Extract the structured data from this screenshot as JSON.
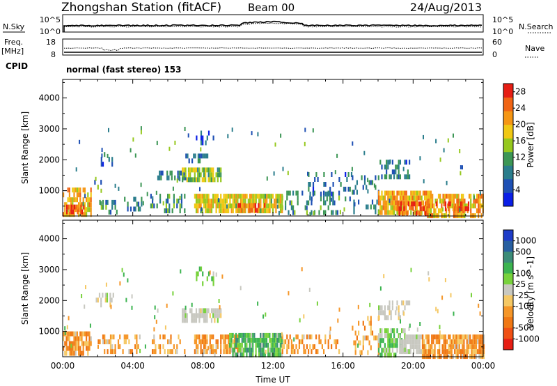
{
  "header": {
    "station": "Zhongshan Station (fitACF)",
    "beam": "Beam 00",
    "date": "24/Aug/2013"
  },
  "strips": {
    "nsky_label": "N.Sky",
    "nsearch_label": "N.Search",
    "noise_top_tick": "10^5",
    "noise_bottom_tick": "10^0",
    "freq_label_line1": "Freq.",
    "freq_label_line2": "[MHz]",
    "freq_top_tick": "18",
    "freq_bottom_tick": "8",
    "nave_label": "Nave",
    "nave_top_tick": "60",
    "nave_bottom_tick": "0",
    "cpid_label": "CPID",
    "cpid_value": "normal (fast stereo) 153"
  },
  "chart_data": [
    {
      "type": "heatmap",
      "panel": "power",
      "ylabel": "Slant Range [km]",
      "xlabel": "",
      "x_ticks": [
        "00:00",
        "04:00",
        "08:00",
        "12:00",
        "16:00",
        "20:00",
        "00:00"
      ],
      "y_ticks": [
        1000,
        2000,
        3000,
        4000
      ],
      "xlim_hours": [
        0,
        24
      ],
      "ylim": [
        180,
        4600
      ],
      "colorbar": {
        "label": "Power [dB]",
        "ticks": [
          4,
          8,
          12,
          16,
          20,
          24,
          28
        ],
        "range": [
          0,
          30
        ],
        "colors": [
          "#0a1ee6",
          "#1e50b4",
          "#2a7d8c",
          "#3c9655",
          "#96c81e",
          "#f0c814",
          "#f59614",
          "#f06414",
          "#e61e14"
        ]
      },
      "patches": [
        {
          "x0": 0.0,
          "x1": 1.6,
          "y0": 250,
          "y1": 1100,
          "level": 20,
          "density": 0.65
        },
        {
          "x0": 0.2,
          "x1": 1.2,
          "y0": 300,
          "y1": 550,
          "level": 27,
          "density": 0.75
        },
        {
          "x0": 2.0,
          "x1": 3.2,
          "y0": 300,
          "y1": 700,
          "level": 10,
          "density": 0.35
        },
        {
          "x0": 1.8,
          "x1": 2.4,
          "y0": 1150,
          "y1": 1350,
          "level": 9,
          "density": 0.4
        },
        {
          "x0": 2.0,
          "x1": 2.9,
          "y0": 1800,
          "y1": 2250,
          "level": 7,
          "density": 0.35
        },
        {
          "x0": 3.5,
          "x1": 4.6,
          "y0": 350,
          "y1": 800,
          "level": 9,
          "density": 0.25
        },
        {
          "x0": 5.0,
          "x1": 7.0,
          "y0": 300,
          "y1": 900,
          "level": 10,
          "density": 0.35
        },
        {
          "x0": 5.4,
          "x1": 7.0,
          "y0": 1350,
          "y1": 1650,
          "level": 8,
          "density": 0.55
        },
        {
          "x0": 6.8,
          "x1": 9.0,
          "y0": 1400,
          "y1": 1750,
          "level": 14,
          "density": 0.8
        },
        {
          "x0": 7.0,
          "x1": 8.3,
          "y0": 1900,
          "y1": 2200,
          "level": 7,
          "density": 0.35
        },
        {
          "x0": 7.6,
          "x1": 8.6,
          "y0": 2500,
          "y1": 3100,
          "level": 7,
          "density": 0.15
        },
        {
          "x0": 7.5,
          "x1": 12.5,
          "y0": 300,
          "y1": 900,
          "level": 18,
          "density": 0.85
        },
        {
          "x0": 10.0,
          "x1": 11.5,
          "y0": 350,
          "y1": 600,
          "level": 25,
          "density": 0.5
        },
        {
          "x0": 12.5,
          "x1": 15.8,
          "y0": 300,
          "y1": 1000,
          "level": 10,
          "density": 0.3
        },
        {
          "x0": 14.0,
          "x1": 16.5,
          "y0": 700,
          "y1": 1600,
          "level": 7,
          "density": 0.15
        },
        {
          "x0": 16.5,
          "x1": 18.0,
          "y0": 300,
          "y1": 1500,
          "level": 9,
          "density": 0.25
        },
        {
          "x0": 18.0,
          "x1": 21.0,
          "y0": 250,
          "y1": 1000,
          "level": 20,
          "density": 0.85
        },
        {
          "x0": 19.0,
          "x1": 20.8,
          "y0": 280,
          "y1": 650,
          "level": 27,
          "density": 0.55
        },
        {
          "x0": 18.0,
          "x1": 19.8,
          "y0": 1400,
          "y1": 2000,
          "level": 8,
          "density": 0.5
        },
        {
          "x0": 20.8,
          "x1": 24.0,
          "y0": 250,
          "y1": 900,
          "level": 20,
          "density": 0.8
        },
        {
          "x0": 21.2,
          "x1": 23.2,
          "y0": 350,
          "y1": 650,
          "level": 27,
          "density": 0.45
        }
      ]
    },
    {
      "type": "heatmap",
      "panel": "velocity",
      "ylabel": "Slant Range [km]",
      "xlabel": "Time UT",
      "x_ticks": [
        "00:00",
        "04:00",
        "08:00",
        "12:00",
        "16:00",
        "20:00",
        "00:00"
      ],
      "y_ticks": [
        1000,
        2000,
        3000,
        4000
      ],
      "xlim_hours": [
        0,
        24
      ],
      "ylim": [
        180,
        4600
      ],
      "colorbar": {
        "label": "Velocity [m s^-1]",
        "ticks": [
          "1000",
          "500",
          "100",
          "25",
          "-25",
          "-100",
          "-500",
          "-1000"
        ],
        "colors": [
          "#1e3cc8",
          "#285fa0",
          "#3c8c78",
          "#3cb450",
          "#78d23c",
          "#c8c8c0",
          "#f5c864",
          "#f59628",
          "#f07814",
          "#f05014",
          "#e61e14"
        ]
      },
      "patches": [
        {
          "x0": 0.0,
          "x1": 1.6,
          "y0": 250,
          "y1": 1000,
          "level": -200,
          "density": 0.75
        },
        {
          "x0": 2.0,
          "x1": 4.5,
          "y0": 300,
          "y1": 900,
          "level": -150,
          "density": 0.35
        },
        {
          "x0": 1.8,
          "x1": 2.9,
          "y0": 1800,
          "y1": 2250,
          "level": 0,
          "density": 0.3
        },
        {
          "x0": 5.0,
          "x1": 7.0,
          "y0": 300,
          "y1": 900,
          "level": -150,
          "density": 0.35
        },
        {
          "x0": 6.8,
          "x1": 9.0,
          "y0": 1400,
          "y1": 1750,
          "level": 0,
          "density": 0.8
        },
        {
          "x0": 7.6,
          "x1": 8.6,
          "y0": 2500,
          "y1": 3100,
          "level": 60,
          "density": 0.2
        },
        {
          "x0": 7.5,
          "x1": 10.0,
          "y0": 300,
          "y1": 900,
          "level": -200,
          "density": 0.7
        },
        {
          "x0": 9.5,
          "x1": 12.5,
          "y0": 300,
          "y1": 950,
          "level": 150,
          "density": 0.8
        },
        {
          "x0": 12.5,
          "x1": 15.8,
          "y0": 300,
          "y1": 900,
          "level": -200,
          "density": 0.4
        },
        {
          "x0": 16.5,
          "x1": 18.0,
          "y0": 300,
          "y1": 1500,
          "level": -150,
          "density": 0.25
        },
        {
          "x0": 18.0,
          "x1": 19.5,
          "y0": 280,
          "y1": 1100,
          "level": 80,
          "density": 0.75
        },
        {
          "x0": 19.2,
          "x1": 20.6,
          "y0": 300,
          "y1": 900,
          "level": 0,
          "density": 0.8
        },
        {
          "x0": 18.0,
          "x1": 19.8,
          "y0": 1400,
          "y1": 2000,
          "level": 0,
          "density": 0.45
        },
        {
          "x0": 20.5,
          "x1": 24.0,
          "y0": 250,
          "y1": 900,
          "level": -200,
          "density": 0.8
        }
      ]
    }
  ]
}
